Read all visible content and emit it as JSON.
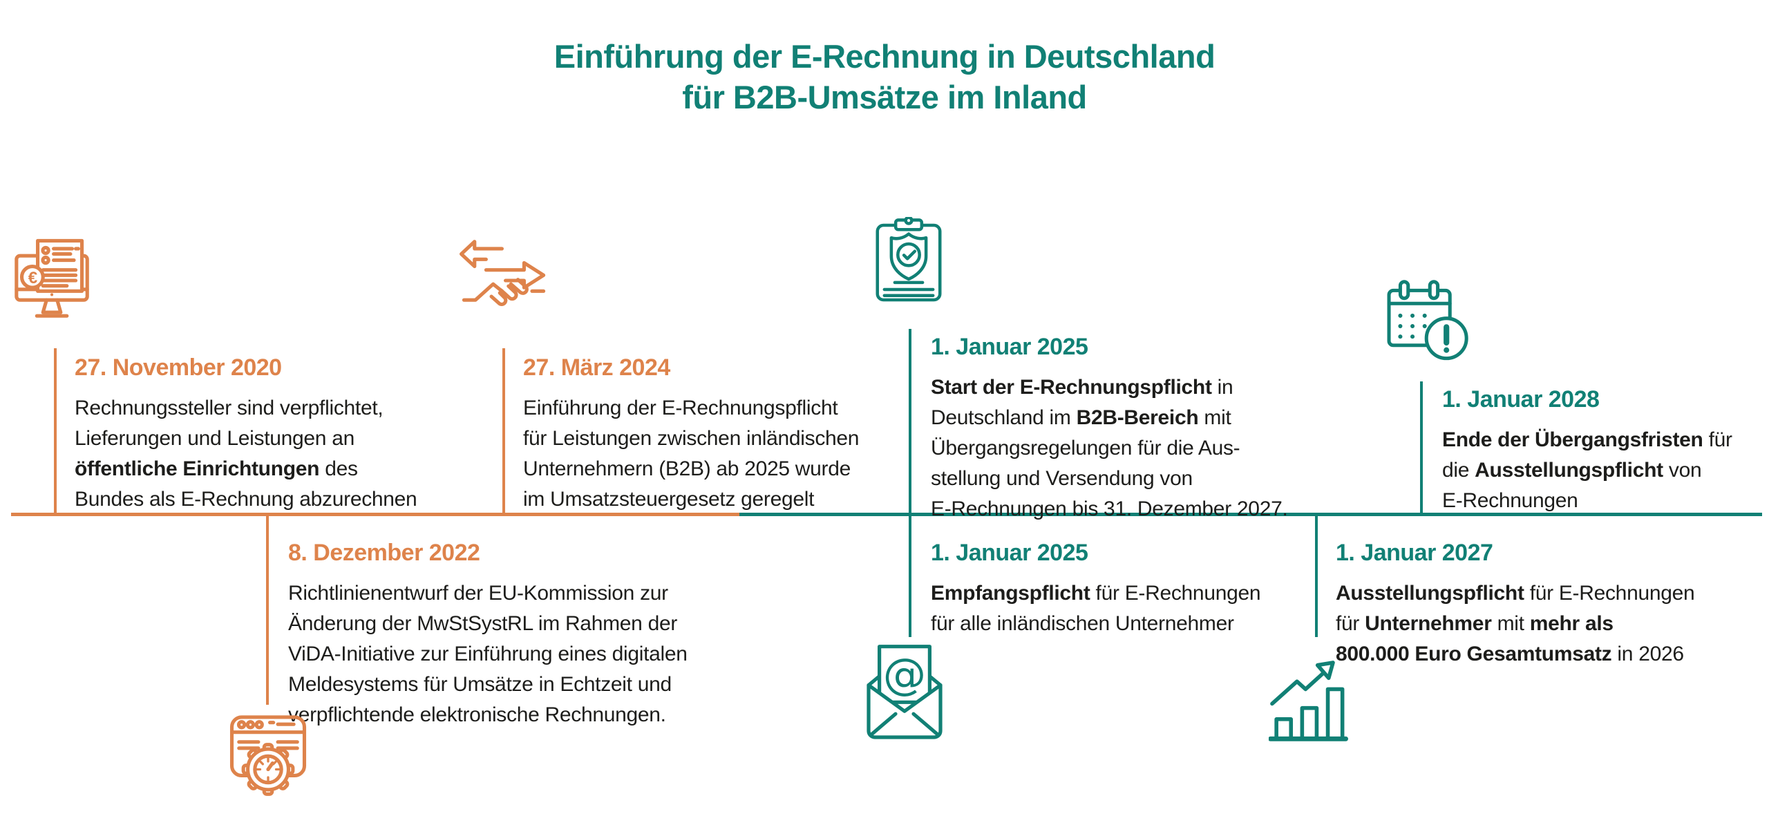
{
  "title": {
    "line1": "Einführung der E-Rechnung in Deutschland",
    "line2": "für B2B-Umsätze im Inland"
  },
  "colors": {
    "teal": "#118075",
    "orange": "#DE834B",
    "text": "#1D1D1B",
    "background": "#FFFFFF"
  },
  "timeline": {
    "orientation": "horizontal",
    "left_segment_color": "orange",
    "right_segment_color": "teal"
  },
  "events": [
    {
      "date": "27. November 2020",
      "accent": "orange",
      "position": "above-line",
      "icon": "invoice-monitor-icon",
      "body_lines": [
        [
          {
            "t": "Rechnungssteller sind verpflichtet,"
          }
        ],
        [
          {
            "t": "Lieferungen und Leistungen an"
          }
        ],
        [
          {
            "t": "öffentliche Einrichtungen",
            "b": true
          },
          {
            "t": " des"
          }
        ],
        [
          {
            "t": "Bundes als E-Rechnung abzurechnen"
          }
        ]
      ]
    },
    {
      "date": "8. Dezember 2022",
      "accent": "orange",
      "position": "below-line",
      "icon": "browser-gear-icon",
      "body_lines": [
        [
          {
            "t": "Richtlinienentwurf der EU-Kommission zur"
          }
        ],
        [
          {
            "t": "Änderung der MwStSystRL im Rahmen der"
          }
        ],
        [
          {
            "t": "ViDA-Initiative zur Einführung eines digitalen"
          }
        ],
        [
          {
            "t": "Meldesystems für Umsätze in Echtzeit und"
          }
        ],
        [
          {
            "t": "verpflichtende elektronische Rechnungen."
          }
        ]
      ]
    },
    {
      "date": "27. März 2024",
      "accent": "orange",
      "position": "above-line",
      "icon": "exchange-handshake-icon",
      "body_lines": [
        [
          {
            "t": "Einführung der E-Rechnungspflicht"
          }
        ],
        [
          {
            "t": "für Leistungen zwischen inländischen"
          }
        ],
        [
          {
            "t": "Unternehmern (B2B) ab 2025 wurde"
          }
        ],
        [
          {
            "t": "im Umsatzsteuergesetz geregelt"
          }
        ]
      ]
    },
    {
      "date": "1. Januar 2025",
      "accent": "teal",
      "position": "above-line",
      "icon": "clipboard-shield-check-icon",
      "body_lines": [
        [
          {
            "t": "Start der E-Rechnungspflicht",
            "b": true
          },
          {
            "t": " in"
          }
        ],
        [
          {
            "t": "Deutschland im "
          },
          {
            "t": "B2B-Bereich",
            "b": true
          },
          {
            "t": " mit"
          }
        ],
        [
          {
            "t": "Übergangsregelungen für die Aus-"
          }
        ],
        [
          {
            "t": "stellung und Versendung von"
          }
        ],
        [
          {
            "t": "E-Rechnungen bis 31. Dezember 2027."
          }
        ]
      ]
    },
    {
      "date": "1. Januar 2025",
      "accent": "teal",
      "position": "below-line",
      "icon": "envelope-at-icon",
      "body_lines": [
        [
          {
            "t": "Empfangspflicht",
            "b": true
          },
          {
            "t": " für E-Rechnungen"
          }
        ],
        [
          {
            "t": "für alle inländischen Unternehmer"
          }
        ]
      ]
    },
    {
      "date": "1. Januar 2027",
      "accent": "teal",
      "position": "below-line",
      "icon": "growth-chart-icon",
      "body_lines": [
        [
          {
            "t": "Ausstellungspflicht",
            "b": true
          },
          {
            "t": " für E-Rechnungen"
          }
        ],
        [
          {
            "t": "für "
          },
          {
            "t": "Unternehmer",
            "b": true
          },
          {
            "t": " mit "
          },
          {
            "t": "mehr als",
            "b": true
          }
        ],
        [
          {
            "t": "800.000 Euro Gesamtumsatz",
            "b": true
          },
          {
            "t": " in 2026"
          }
        ]
      ]
    },
    {
      "date": "1. Januar 2028",
      "accent": "teal",
      "position": "above-line",
      "icon": "calendar-alert-icon",
      "body_lines": [
        [
          {
            "t": "Ende der Übergangsfristen",
            "b": true
          },
          {
            "t": " für"
          }
        ],
        [
          {
            "t": "die "
          },
          {
            "t": "Ausstellungspflicht",
            "b": true
          },
          {
            "t": " von"
          }
        ],
        [
          {
            "t": "E-Rechnungen"
          }
        ]
      ]
    }
  ]
}
